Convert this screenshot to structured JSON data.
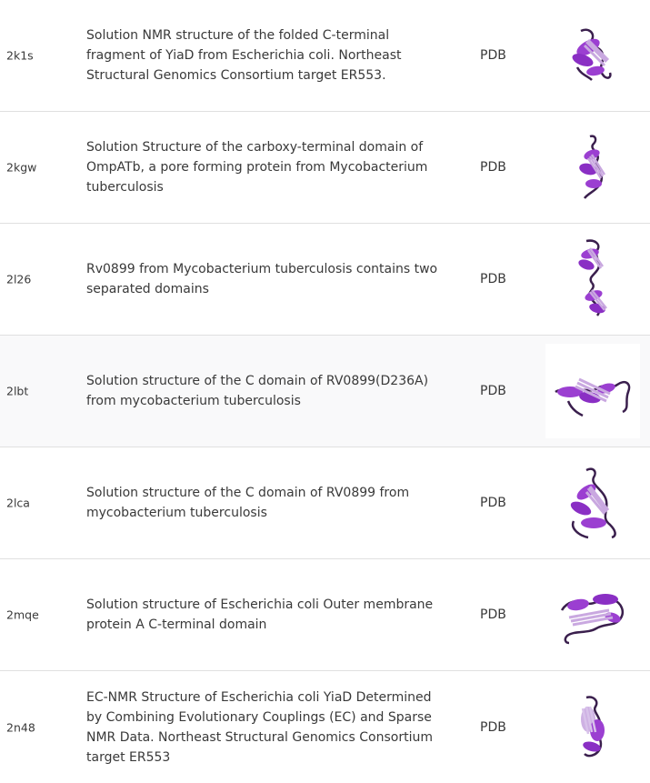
{
  "colors": {
    "helix": "#9b3fd1",
    "helix_dark": "#5a1a85",
    "strand": "#c9a8e0",
    "coil": "#3a1f4d"
  },
  "rows": [
    {
      "id": "2k1s",
      "description": "Solution NMR structure of the folded C-terminal fragment of YiaD from Escherichia coli. Northeast Structural Genomics Consortium target ER553.",
      "source": "PDB",
      "image_icon": "protein-structure-thumbnail"
    },
    {
      "id": "2kgw",
      "description": "Solution Structure of the carboxy-terminal domain of OmpATb, a pore forming protein from Mycobacterium tuberculosis",
      "source": "PDB",
      "image_icon": "protein-structure-thumbnail"
    },
    {
      "id": "2l26",
      "description": "Rv0899 from Mycobacterium tuberculosis contains two separated domains",
      "source": "PDB",
      "image_icon": "protein-structure-thumbnail"
    },
    {
      "id": "2lbt",
      "description": "Solution structure of the C domain of RV0899(D236A) from mycobacterium tuberculosis",
      "source": "PDB",
      "image_icon": "protein-structure-thumbnail"
    },
    {
      "id": "2lca",
      "description": "Solution structure of the C domain of RV0899 from mycobacterium tuberculosis",
      "source": "PDB",
      "image_icon": "protein-structure-thumbnail"
    },
    {
      "id": "2mqe",
      "description": "Solution structure of Escherichia coli Outer membrane protein A C-terminal domain",
      "source": "PDB",
      "image_icon": "protein-structure-thumbnail"
    },
    {
      "id": "2n48",
      "description": "EC-NMR Structure of Escherichia coli YiaD Determined by Combining Evolutionary Couplings (EC) and Sparse NMR Data. Northeast Structural Genomics Consortium target ER553",
      "source": "PDB",
      "image_icon": "protein-structure-thumbnail"
    }
  ]
}
